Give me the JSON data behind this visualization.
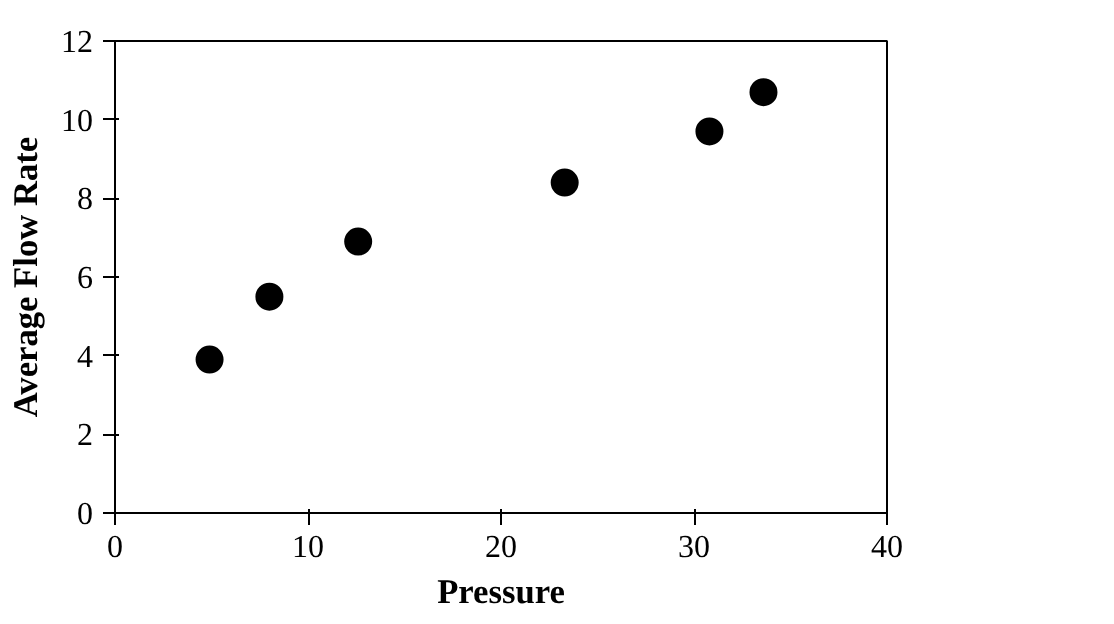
{
  "chart_data": {
    "type": "scatter",
    "xlabel": "Pressure",
    "ylabel": "Average Flow Rate",
    "x": [
      4.9,
      8.0,
      12.6,
      23.3,
      30.8,
      33.6
    ],
    "series": [
      {
        "color": "#000000",
        "values": [
          3.9,
          5.5,
          6.9,
          8.4,
          9.7,
          10.7
        ]
      }
    ],
    "xlim": [
      0,
      40
    ],
    "ylim": [
      0,
      12
    ],
    "xticks": [
      0,
      10,
      20,
      30,
      40
    ],
    "yticks": [
      0,
      2,
      4,
      6,
      8,
      10,
      12
    ],
    "marker": "circle",
    "grid": false
  }
}
